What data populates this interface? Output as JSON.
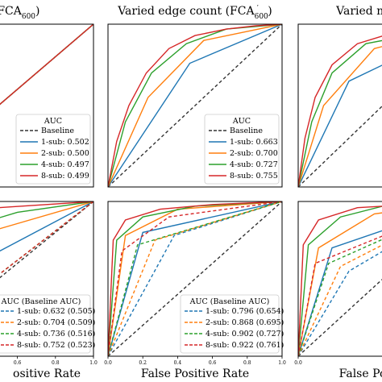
{
  "colors": {
    "baseline": "#333333",
    "sub1": "#1f77b4",
    "sub2": "#ff7f0e",
    "sub4": "#2ca02c",
    "sub8": "#d62728"
  },
  "chart_data": [
    {
      "type": "line",
      "panel": "top-left",
      "title_prefix": "count (FCA",
      "title_sub": "600",
      "title_suffix": ")",
      "legend_title": "AUC",
      "legend": [
        "Baseline",
        "1-sub: 0.502",
        "2-sub: 0.500",
        "4-sub: 0.497",
        "8-sub: 0.499"
      ],
      "xlim": [
        0,
        1
      ],
      "ylim": [
        0,
        1
      ],
      "series": [
        {
          "name": "Baseline",
          "style": "dashed",
          "x": [
            0,
            1
          ],
          "y": [
            0,
            1
          ]
        },
        {
          "name": "1-sub",
          "x": [
            0,
            1
          ],
          "y": [
            0,
            1
          ]
        },
        {
          "name": "2-sub",
          "x": [
            0,
            1
          ],
          "y": [
            0,
            1
          ]
        },
        {
          "name": "4-sub",
          "x": [
            0,
            1
          ],
          "y": [
            0,
            1
          ]
        },
        {
          "name": "8-sub",
          "x": [
            0,
            1
          ],
          "y": [
            0,
            1
          ]
        }
      ]
    },
    {
      "type": "line",
      "panel": "top-middle",
      "title_prefix": "Varied edge count (FCA",
      "title_sub": "600",
      "title_prime": "′",
      "title_suffix": ")",
      "legend_title": "AUC",
      "legend": [
        "Baseline",
        "1-sub: 0.663",
        "2-sub: 0.700",
        "4-sub: 0.727",
        "8-sub: 0.755"
      ],
      "xlim": [
        0,
        1
      ],
      "ylim": [
        0,
        1
      ],
      "series": [
        {
          "name": "Baseline",
          "style": "dashed",
          "x": [
            0,
            1
          ],
          "y": [
            0,
            1
          ]
        },
        {
          "name": "1-sub",
          "x": [
            0,
            0.47,
            1
          ],
          "y": [
            0,
            0.76,
            1
          ]
        },
        {
          "name": "2-sub",
          "x": [
            0,
            0.23,
            0.55,
            1
          ],
          "y": [
            0,
            0.55,
            0.9,
            1
          ]
        },
        {
          "name": "4-sub",
          "x": [
            0,
            0.1,
            0.25,
            0.45,
            0.68,
            1
          ],
          "y": [
            0,
            0.4,
            0.7,
            0.88,
            0.97,
            1
          ]
        },
        {
          "name": "8-sub",
          "x": [
            0,
            0.05,
            0.12,
            0.22,
            0.35,
            0.5,
            0.68,
            0.85,
            1
          ],
          "y": [
            0,
            0.28,
            0.5,
            0.7,
            0.85,
            0.93,
            0.97,
            0.99,
            1
          ]
        }
      ]
    },
    {
      "type": "line",
      "panel": "top-right",
      "title_prefix": "Varied node/edg",
      "series": [
        {
          "name": "Baseline",
          "style": "dashed",
          "x": [
            0,
            1
          ],
          "y": [
            0,
            1
          ]
        },
        {
          "name": "1-sub",
          "x": [
            0,
            0.3,
            1
          ],
          "y": [
            0,
            0.65,
            1
          ]
        },
        {
          "name": "2-sub",
          "x": [
            0,
            0.15,
            0.45,
            1
          ],
          "y": [
            0,
            0.5,
            0.85,
            1
          ]
        },
        {
          "name": "4-sub",
          "x": [
            0,
            0.08,
            0.2,
            0.4,
            1
          ],
          "y": [
            0,
            0.4,
            0.7,
            0.88,
            1
          ]
        },
        {
          "name": "8-sub",
          "x": [
            0,
            0.04,
            0.1,
            0.2,
            0.35,
            0.6,
            1
          ],
          "y": [
            0,
            0.3,
            0.55,
            0.75,
            0.88,
            0.96,
            1
          ]
        }
      ]
    },
    {
      "type": "line",
      "panel": "bottom-left",
      "xlabel": "ositive Rate",
      "xticks": [
        "0.6",
        "0.8",
        "1.0"
      ],
      "legend_title": "AUC (Baseline AUC)",
      "legend": [
        "1-sub: 0.632 (0.505)",
        "2-sub: 0.704 (0.509)",
        "4-sub: 0.736 (0.516)",
        "8-sub: 0.752 (0.523)"
      ],
      "series": [
        {
          "name": "Baseline",
          "style": "dashed",
          "x": [
            0,
            1
          ],
          "y": [
            0,
            1
          ]
        },
        {
          "name": "1-sub",
          "x": [
            0,
            1
          ],
          "y": [
            0.35,
            1
          ]
        },
        {
          "name": "2-sub",
          "x": [
            0,
            0.3,
            1
          ],
          "y": [
            0.45,
            0.75,
            1
          ]
        },
        {
          "name": "4-sub",
          "x": [
            0,
            0.25,
            0.6,
            1
          ],
          "y": [
            0.55,
            0.8,
            0.93,
            1
          ]
        },
        {
          "name": "8-sub",
          "x": [
            0,
            0.2,
            0.5,
            1
          ],
          "y": [
            0.65,
            0.85,
            0.96,
            1
          ]
        },
        {
          "name": "1-sub baseline",
          "style": "dashed",
          "x": [
            0,
            1
          ],
          "y": [
            0.05,
            1
          ]
        },
        {
          "name": "2-sub baseline",
          "style": "dashed",
          "x": [
            0,
            1
          ],
          "y": [
            0.05,
            1
          ]
        },
        {
          "name": "4-sub baseline",
          "style": "dashed",
          "x": [
            0,
            1
          ],
          "y": [
            0.05,
            1
          ]
        },
        {
          "name": "8-sub baseline",
          "style": "dashed",
          "x": [
            0,
            1
          ],
          "y": [
            0.05,
            1
          ]
        }
      ]
    },
    {
      "type": "line",
      "panel": "bottom-middle",
      "xlabel": "False Positive Rate",
      "xticks": [
        "0.0",
        "0.2",
        "0.4",
        "0.6",
        "0.8",
        "1.0"
      ],
      "legend_title": "AUC (Baseline AUC)",
      "legend": [
        "1-sub: 0.796 (0.654)",
        "2-sub: 0.868 (0.695)",
        "4-sub: 0.902 (0.727)",
        "8-sub: 0.922 (0.761)"
      ],
      "xlim": [
        0,
        1
      ],
      "ylim": [
        0,
        1
      ],
      "series": [
        {
          "name": "Baseline",
          "style": "dashed",
          "x": [
            0,
            1
          ],
          "y": [
            0,
            1
          ]
        },
        {
          "name": "1-sub",
          "x": [
            0,
            0.2,
            1
          ],
          "y": [
            0,
            0.8,
            1
          ]
        },
        {
          "name": "2-sub",
          "x": [
            0,
            0.1,
            0.4,
            1
          ],
          "y": [
            0,
            0.78,
            0.95,
            1
          ]
        },
        {
          "name": "4-sub",
          "x": [
            0,
            0.05,
            0.2,
            0.5,
            1
          ],
          "y": [
            0,
            0.75,
            0.9,
            0.97,
            1
          ]
        },
        {
          "name": "8-sub",
          "x": [
            0,
            0.03,
            0.1,
            0.3,
            0.6,
            1
          ],
          "y": [
            0,
            0.75,
            0.88,
            0.95,
            0.98,
            1
          ]
        },
        {
          "name": "1-sub baseline",
          "style": "dashed",
          "x": [
            0,
            0.38,
            1
          ],
          "y": [
            0,
            0.78,
            1
          ]
        },
        {
          "name": "2-sub baseline",
          "style": "dashed",
          "x": [
            0,
            0.27,
            1
          ],
          "y": [
            0,
            0.75,
            1
          ]
        },
        {
          "name": "4-sub baseline",
          "style": "dashed",
          "x": [
            0,
            0.17,
            1
          ],
          "y": [
            0,
            0.72,
            1
          ]
        },
        {
          "name": "8-sub baseline",
          "style": "dashed",
          "x": [
            0,
            0.08,
            0.35,
            1
          ],
          "y": [
            0,
            0.68,
            0.9,
            1
          ]
        }
      ]
    },
    {
      "type": "line",
      "panel": "bottom-right",
      "xlabel": "False Po",
      "xticks": [
        "0.0"
      ],
      "series": [
        {
          "name": "Baseline",
          "style": "dashed",
          "x": [
            0,
            1
          ],
          "y": [
            0,
            1
          ]
        },
        {
          "name": "1-sub",
          "x": [
            0,
            0.2,
            1
          ],
          "y": [
            0,
            0.7,
            1
          ]
        },
        {
          "name": "2-sub",
          "x": [
            0,
            0.12,
            0.45,
            1
          ],
          "y": [
            0,
            0.7,
            0.92,
            1
          ]
        },
        {
          "name": "4-sub",
          "x": [
            0,
            0.06,
            0.25,
            0.5,
            1
          ],
          "y": [
            0,
            0.72,
            0.9,
            0.97,
            1
          ]
        },
        {
          "name": "8-sub",
          "x": [
            0,
            0.03,
            0.12,
            0.35,
            1
          ],
          "y": [
            0,
            0.72,
            0.88,
            0.96,
            1
          ]
        },
        {
          "name": "1-sub baseline",
          "style": "dashed",
          "x": [
            0,
            0.3,
            1
          ],
          "y": [
            0,
            0.55,
            1
          ]
        },
        {
          "name": "2-sub baseline",
          "style": "dashed",
          "x": [
            0,
            0.25,
            1
          ],
          "y": [
            0,
            0.58,
            1
          ]
        },
        {
          "name": "4-sub baseline",
          "style": "dashed",
          "x": [
            0,
            0.18,
            1
          ],
          "y": [
            0,
            0.6,
            1
          ]
        },
        {
          "name": "8-sub baseline",
          "style": "dashed",
          "x": [
            0,
            0.1,
            1
          ],
          "y": [
            0,
            0.6,
            1
          ]
        }
      ]
    }
  ]
}
